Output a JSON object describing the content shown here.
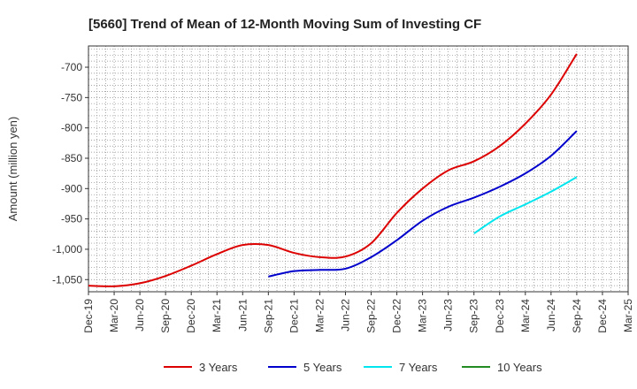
{
  "chart_data": {
    "type": "line",
    "title": "[5660]  Trend of Mean of 12-Month Moving Sum of Investing CF",
    "xlabel": "",
    "ylabel": "Amount (million yen)",
    "ylim": [
      -1070,
      -665
    ],
    "yticks": [
      -700,
      -750,
      -800,
      -850,
      -900,
      -950,
      -1000,
      -1050
    ],
    "ytick_labels": [
      "-700",
      "-750",
      "-800",
      "-850",
      "-900",
      "-950",
      "-1,000",
      "-1,050"
    ],
    "grid": true,
    "legend_position": "bottom",
    "categories": [
      "Dec-19",
      "Mar-20",
      "Jun-20",
      "Sep-20",
      "Dec-20",
      "Mar-21",
      "Jun-21",
      "Sep-21",
      "Dec-21",
      "Mar-22",
      "Jun-22",
      "Sep-22",
      "Dec-22",
      "Mar-23",
      "Jun-23",
      "Sep-23",
      "Dec-23",
      "Mar-24",
      "Jun-24",
      "Sep-24",
      "Dec-24",
      "Mar-25"
    ],
    "series": [
      {
        "name": "3 Years",
        "color": "#dd0000",
        "values": [
          -1060,
          -1061,
          -1056,
          -1044,
          -1027,
          -1008,
          -993,
          -993,
          -1006,
          -1013,
          -1012,
          -990,
          -940,
          -900,
          -870,
          -855,
          -830,
          -793,
          -745,
          -678,
          null,
          null
        ]
      },
      {
        "name": "5 Years",
        "color": "#0000cc",
        "values": [
          null,
          null,
          null,
          null,
          null,
          null,
          null,
          -1045,
          -1036,
          -1034,
          -1032,
          -1013,
          -985,
          -953,
          -930,
          -915,
          -897,
          -875,
          -846,
          -805,
          null,
          null
        ]
      },
      {
        "name": "7 Years",
        "color": "#00e5ee",
        "values": [
          null,
          null,
          null,
          null,
          null,
          null,
          null,
          null,
          null,
          null,
          null,
          null,
          null,
          null,
          null,
          -974,
          -946,
          -926,
          -905,
          -881,
          null,
          null
        ]
      },
      {
        "name": "10 Years",
        "color": "#228b22",
        "values": [
          null,
          null,
          null,
          null,
          null,
          null,
          null,
          null,
          null,
          null,
          null,
          null,
          null,
          null,
          null,
          null,
          null,
          null,
          null,
          null,
          null,
          null
        ]
      }
    ]
  }
}
